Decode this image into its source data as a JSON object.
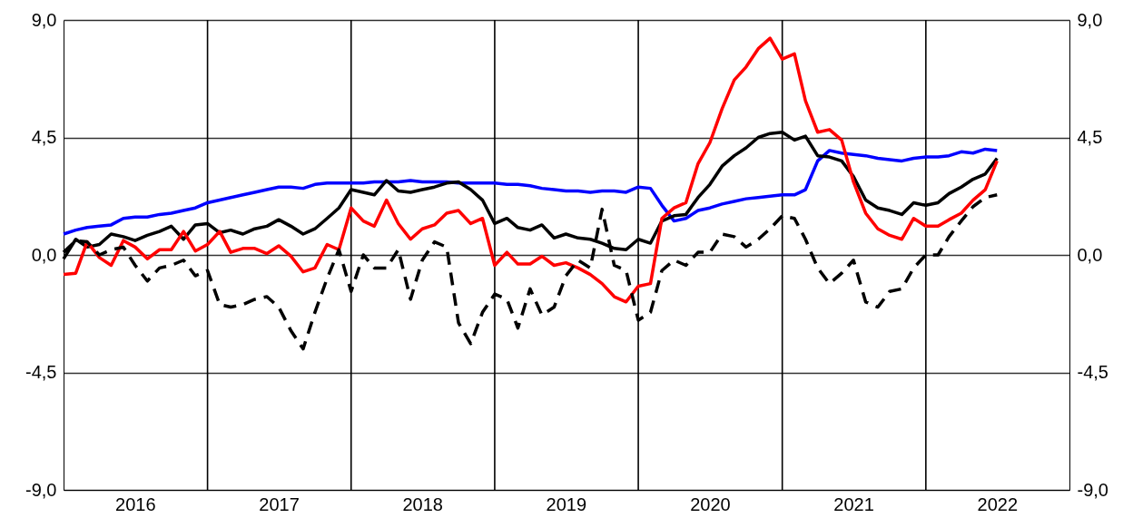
{
  "chart_data": {
    "type": "line",
    "x": [
      "2016-01",
      "2016-02",
      "2016-03",
      "2016-04",
      "2016-05",
      "2016-06",
      "2016-07",
      "2016-08",
      "2016-09",
      "2016-10",
      "2016-11",
      "2016-12",
      "2017-01",
      "2017-02",
      "2017-03",
      "2017-04",
      "2017-05",
      "2017-06",
      "2017-07",
      "2017-08",
      "2017-09",
      "2017-10",
      "2017-11",
      "2017-12",
      "2018-01",
      "2018-02",
      "2018-03",
      "2018-04",
      "2018-05",
      "2018-06",
      "2018-07",
      "2018-08",
      "2018-09",
      "2018-10",
      "2018-11",
      "2018-12",
      "2019-01",
      "2019-02",
      "2019-03",
      "2019-04",
      "2019-05",
      "2019-06",
      "2019-07",
      "2019-08",
      "2019-09",
      "2019-10",
      "2019-11",
      "2019-12",
      "2020-01",
      "2020-02",
      "2020-03",
      "2020-04",
      "2020-05",
      "2020-06",
      "2020-07",
      "2020-08",
      "2020-09",
      "2020-10",
      "2020-11",
      "2020-12",
      "2021-01",
      "2021-02",
      "2021-03",
      "2021-04",
      "2021-05",
      "2021-06",
      "2021-07",
      "2021-08",
      "2021-09",
      "2021-10",
      "2021-11",
      "2021-12",
      "2022-01",
      "2022-02",
      "2022-03",
      "2022-04",
      "2022-05",
      "2022-06",
      "2022-07"
    ],
    "series": [
      {
        "color": "#0000ff",
        "values": [
          0.8,
          0.95,
          1.05,
          1.1,
          1.15,
          1.4,
          1.45,
          1.45,
          1.55,
          1.6,
          1.7,
          1.8,
          2.0,
          2.1,
          2.2,
          2.3,
          2.4,
          2.5,
          2.6,
          2.6,
          2.55,
          2.7,
          2.75,
          2.75,
          2.75,
          2.75,
          2.8,
          2.8,
          2.8,
          2.85,
          2.8,
          2.8,
          2.8,
          2.75,
          2.75,
          2.75,
          2.75,
          2.7,
          2.7,
          2.65,
          2.55,
          2.5,
          2.45,
          2.45,
          2.4,
          2.45,
          2.45,
          2.4,
          2.6,
          2.55,
          1.9,
          1.3,
          1.4,
          1.7,
          1.8,
          1.95,
          2.05,
          2.15,
          2.2,
          2.25,
          2.3,
          2.3,
          2.5,
          3.6,
          4.0,
          3.9,
          3.85,
          3.8,
          3.7,
          3.65,
          3.6,
          3.7,
          3.75,
          3.75,
          3.8,
          3.95,
          3.9,
          4.05,
          4.0
        ]
      },
      {
        "color": "#000000",
        "values": [
          -0.15,
          0.6,
          0.3,
          0.4,
          0.8,
          0.7,
          0.55,
          0.75,
          0.9,
          1.1,
          0.6,
          1.15,
          1.2,
          0.85,
          0.95,
          0.8,
          1.0,
          1.1,
          1.35,
          1.1,
          0.8,
          1.0,
          1.4,
          1.8,
          2.5,
          2.4,
          2.3,
          2.85,
          2.45,
          2.4,
          2.5,
          2.6,
          2.75,
          2.8,
          2.5,
          2.1,
          1.2,
          1.4,
          1.05,
          0.95,
          1.15,
          0.65,
          0.8,
          0.65,
          0.6,
          0.45,
          0.25,
          0.2,
          0.6,
          0.45,
          1.3,
          1.5,
          1.55,
          2.2,
          2.7,
          3.4,
          3.8,
          4.1,
          4.5,
          4.65,
          4.7,
          4.4,
          4.55,
          3.8,
          3.75,
          3.6,
          3.0,
          2.1,
          1.8,
          1.7,
          1.55,
          2.0,
          1.9,
          2.0,
          2.35,
          2.6,
          2.9,
          3.1,
          3.7
        ]
      },
      {
        "color": "#ff0000",
        "values": [
          -0.75,
          -0.7,
          0.5,
          -0.1,
          -0.4,
          0.55,
          0.3,
          -0.15,
          0.2,
          0.2,
          0.9,
          0.15,
          0.4,
          0.9,
          0.1,
          0.25,
          0.25,
          0.05,
          0.35,
          -0.05,
          -0.65,
          -0.5,
          0.4,
          0.2,
          1.8,
          1.3,
          1.1,
          2.1,
          1.2,
          0.6,
          1.0,
          1.15,
          1.6,
          1.7,
          1.2,
          1.4,
          -0.4,
          0.1,
          -0.35,
          -0.35,
          -0.05,
          -0.4,
          -0.3,
          -0.5,
          -0.75,
          -1.1,
          -1.6,
          -1.8,
          -1.2,
          -1.1,
          1.4,
          1.8,
          2.0,
          3.5,
          4.3,
          5.6,
          6.7,
          7.2,
          7.9,
          8.3,
          7.5,
          7.7,
          5.9,
          4.7,
          4.8,
          4.4,
          2.8,
          1.6,
          1.0,
          0.75,
          0.6,
          1.4,
          1.1,
          1.1,
          1.35,
          1.6,
          2.1,
          2.5,
          3.6
        ]
      },
      {
        "color": "#000000",
        "line_style": "dashed",
        "values": [
          0.1,
          0.55,
          0.5,
          0.0,
          0.2,
          0.3,
          -0.4,
          -1.0,
          -0.5,
          -0.4,
          -0.2,
          -0.8,
          -0.6,
          -1.9,
          -2.0,
          -1.9,
          -1.7,
          -1.6,
          -2.0,
          -2.9,
          -3.6,
          -2.2,
          -0.9,
          0.2,
          -1.4,
          0.0,
          -0.5,
          -0.5,
          0.2,
          -1.7,
          -0.2,
          0.5,
          0.3,
          -2.6,
          -3.4,
          -2.2,
          -1.5,
          -1.7,
          -2.8,
          -1.3,
          -2.3,
          -2.0,
          -0.8,
          -0.2,
          -0.5,
          1.75,
          -0.4,
          -0.6,
          -2.5,
          -2.2,
          -0.6,
          -0.2,
          -0.4,
          0.1,
          0.1,
          0.8,
          0.7,
          0.3,
          0.6,
          1.0,
          1.5,
          1.4,
          0.6,
          -0.5,
          -1.1,
          -0.7,
          -0.2,
          -1.8,
          -2.0,
          -1.4,
          -1.3,
          -0.5,
          0.0,
          0.0,
          0.7,
          1.3,
          1.85,
          2.2,
          2.3
        ]
      }
    ],
    "xlim": [
      "2016-01-01",
      "2023-01-01"
    ],
    "xticks": [
      {
        "value": "2016-07-01",
        "label": "2016"
      },
      {
        "value": "2017-07-01",
        "label": "2017"
      },
      {
        "value": "2018-07-01",
        "label": "2018"
      },
      {
        "value": "2019-07-01",
        "label": "2019"
      },
      {
        "value": "2020-07-01",
        "label": "2020"
      },
      {
        "value": "2021-07-01",
        "label": "2021"
      },
      {
        "value": "2022-07-01",
        "label": "2022"
      },
      {
        "value": "2017-01-01",
        "label": null
      },
      {
        "value": "2018-01-01",
        "label": null
      },
      {
        "value": "2019-01-01",
        "label": null
      },
      {
        "value": "2020-01-01",
        "label": null
      },
      {
        "value": "2021-01-01",
        "label": null
      },
      {
        "value": "2022-01-01",
        "label": null
      }
    ],
    "ylim": [
      -9,
      9
    ],
    "yticks": [
      {
        "value": -9,
        "label": "-9,0"
      },
      {
        "value": -4.5,
        "label": "-4,5"
      },
      {
        "value": 0,
        "label": "0,0"
      },
      {
        "value": 4.5,
        "label": "4,5"
      },
      {
        "value": 9,
        "label": "9,0"
      }
    ],
    "y2lim": [
      -9,
      9
    ],
    "y2ticks": [
      {
        "value": -9,
        "label": "-9,0"
      },
      {
        "value": -4.5,
        "label": "-4,5"
      },
      {
        "value": 0,
        "label": "0,0"
      },
      {
        "value": 4.5,
        "label": "4,5"
      },
      {
        "value": 9,
        "label": "9,0"
      }
    ],
    "grid": true,
    "marker": "none",
    "line_style": "solid"
  }
}
